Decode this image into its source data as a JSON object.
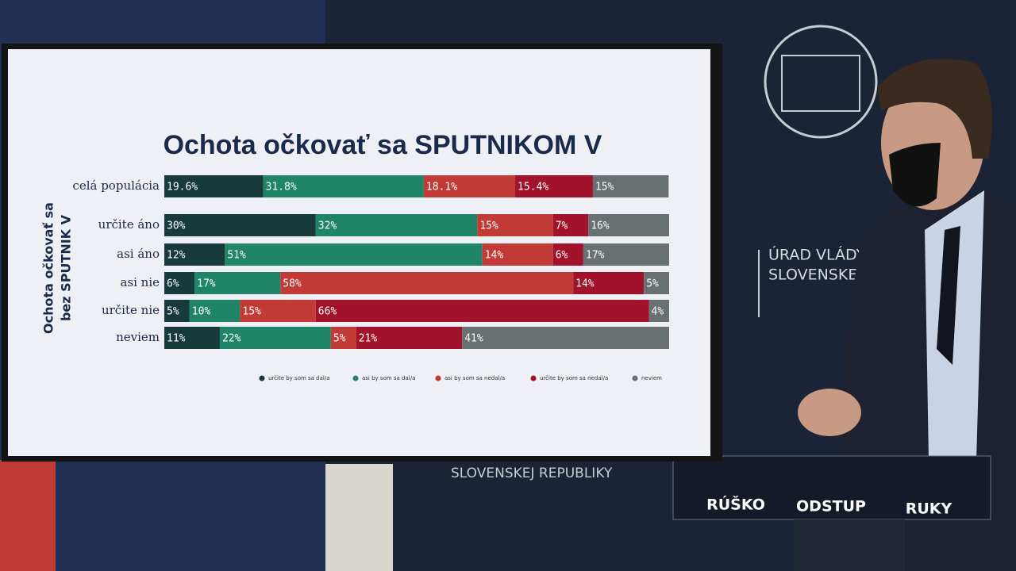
{
  "chart_data": {
    "type": "bar",
    "orientation": "horizontal",
    "stacked": true,
    "title": "Ochota očkovať sa SPUTNIKOM V",
    "y_label": [
      "Ochota očkovať sa",
      "bez SPUTNIK V"
    ],
    "categories": [
      "celá populácia",
      "určite áno",
      "asi áno",
      "asi nie",
      "určite nie",
      "neviem"
    ],
    "xlim": [
      0,
      100
    ],
    "series": [
      {
        "name": "určite by som sa dal/a",
        "color": "#173a3a",
        "values": [
          19.6,
          30,
          12,
          6,
          5,
          11
        ],
        "value_labels": [
          "19.6%",
          "30%",
          "12%",
          "6%",
          "5%",
          "11%"
        ]
      },
      {
        "name": "asi by som sa dal/a",
        "color": "#1f8566",
        "values": [
          31.8,
          32,
          51,
          17,
          10,
          22
        ],
        "value_labels": [
          "31.8%",
          "32%",
          "51%",
          "17%",
          "10%",
          "22%"
        ]
      },
      {
        "name": "asi by som sa nedal/a",
        "color": "#c23a36",
        "values": [
          18.1,
          15,
          14,
          58,
          15,
          5
        ],
        "value_labels": [
          "18.1%",
          "15%",
          "14%",
          "58%",
          "15%",
          "5%"
        ]
      },
      {
        "name": "určite by som sa nedal/a",
        "color": "#a3122b",
        "values": [
          15.4,
          7,
          6,
          14,
          66,
          21
        ],
        "value_labels": [
          "15.4%",
          "7%",
          "6%",
          "14%",
          "66%",
          "21%"
        ]
      },
      {
        "name": "neviem",
        "color": "#687071",
        "values": [
          15,
          16,
          17,
          5,
          4,
          41
        ],
        "value_labels": [
          "15%",
          "16%",
          "17%",
          "5%",
          "4%",
          "41%"
        ]
      }
    ]
  },
  "scene": {
    "sign": [
      "ÚRAD VLÁDY",
      "SLOVENSKEJ REP"
    ],
    "banner": "SLOVENSKEJ REPUBLIKY",
    "podium": [
      "RÚŠKO",
      "ODSTUP",
      "RUKY"
    ]
  }
}
